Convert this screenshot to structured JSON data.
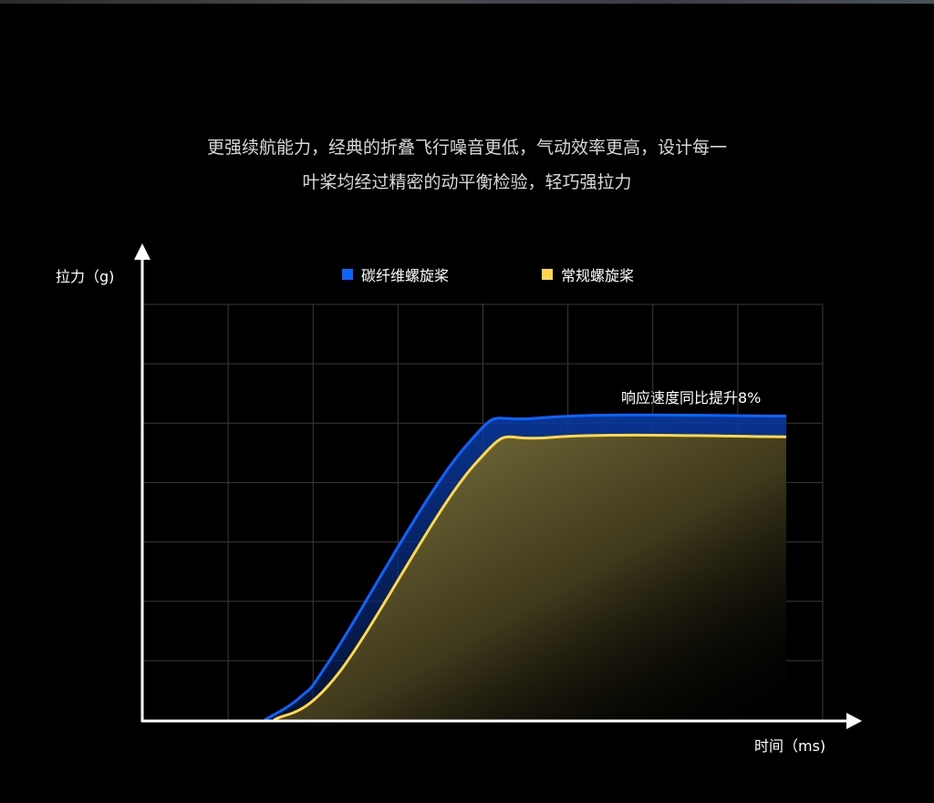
{
  "description": {
    "line1": "更强续航能力，经典的折叠飞行噪音更低，气动效率更高，设计每一",
    "line2": "叶桨均经过精密的动平衡检验，轻巧强拉力"
  },
  "chart_data": {
    "type": "line",
    "title": "",
    "xlabel": "时间（ms)",
    "ylabel": "拉力（g)",
    "xlim": [
      0,
      8
    ],
    "ylim": [
      0,
      7
    ],
    "grid": true,
    "legend_position": "top",
    "annotation": "响应速度同比提升8%",
    "series": [
      {
        "name": "碳纤维螺旋桨",
        "color": "#0a64ff",
        "x": [
          1.43,
          1.86,
          2.23,
          3.79,
          4.7,
          7.57
        ],
        "y": [
          0,
          0.4,
          1.08,
          4.6,
          5.09,
          5.12
        ]
      },
      {
        "name": "常规螺旋桨",
        "color": "#ffd84a",
        "x": [
          1.54,
          2.29,
          3.9,
          4.81,
          7.57
        ],
        "y": [
          0,
          0.77,
          4.3,
          4.76,
          4.77
        ]
      }
    ]
  }
}
